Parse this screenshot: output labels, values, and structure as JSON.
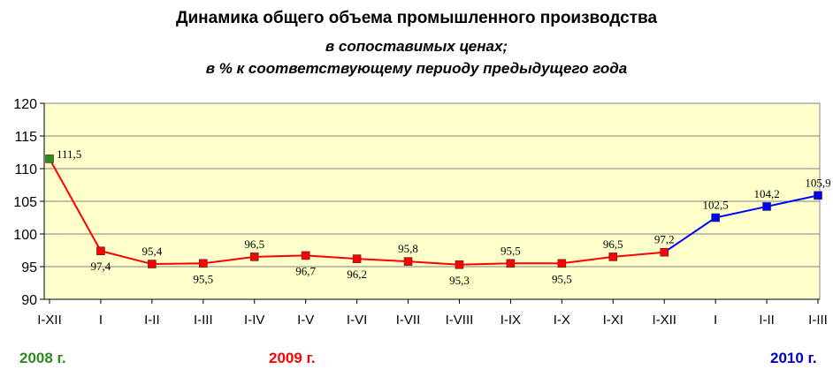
{
  "titles": {
    "main": "Динамика общего объема промышленного производства",
    "sub1": "в сопоставимых ценах;",
    "sub2": "в % к соответствующему периоду предыдущего года"
  },
  "years": {
    "y2008": "2008 г.",
    "y2009": "2009 г.",
    "y2010": "2010 г."
  },
  "colors": {
    "y2008": "#2e8b22",
    "y2009": "#ff0000",
    "y2010": "#0000ff",
    "plot_bg": "#ffffcc"
  },
  "chart_data": {
    "type": "line",
    "title": "Динамика общего объема промышленного производства",
    "categories": [
      "I-XII",
      "I",
      "I-II",
      "I-III",
      "I-IV",
      "I-V",
      "I-VI",
      "I-VII",
      "I-VIII",
      "I-IX",
      "I-X",
      "I-XI",
      "I-XII",
      "I",
      "I-II",
      "I-III"
    ],
    "values": [
      111.5,
      97.4,
      95.4,
      95.5,
      96.5,
      96.7,
      96.2,
      95.8,
      95.3,
      95.5,
      95.5,
      96.5,
      97.2,
      102.5,
      104.2,
      105.9
    ],
    "labels": [
      "111,5",
      "97,4",
      "95,4",
      "95,5",
      "96,5",
      "96,7",
      "96,2",
      "95,8",
      "95,3",
      "95,5",
      "95,5",
      "96,5",
      "97,2",
      "102,5",
      "104,2",
      "105,9"
    ],
    "label_pos": [
      "above",
      "below",
      "above",
      "below",
      "above",
      "below",
      "below",
      "above",
      "below",
      "above",
      "below",
      "above",
      "above",
      "above",
      "above",
      "above"
    ],
    "point_year": [
      "2008",
      "2009",
      "2009",
      "2009",
      "2009",
      "2009",
      "2009",
      "2009",
      "2009",
      "2009",
      "2009",
      "2009",
      "2009",
      "2010",
      "2010",
      "2010"
    ],
    "ylim": [
      90,
      120
    ],
    "yticks": [
      90,
      95,
      100,
      105,
      110,
      115,
      120
    ],
    "grid": true
  }
}
